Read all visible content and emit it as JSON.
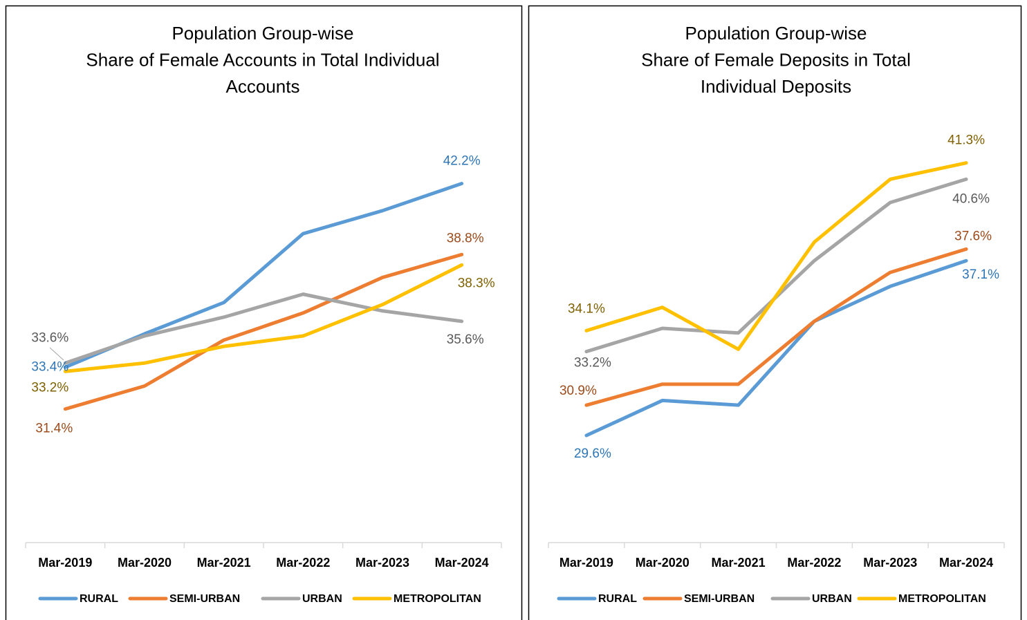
{
  "chart_data": [
    {
      "type": "line",
      "title": [
        "Population Group-wise",
        "Share of Female Accounts in Total Individual",
        "Accounts"
      ],
      "categories": [
        "Mar-2019",
        "Mar-2020",
        "Mar-2021",
        "Mar-2022",
        "Mar-2023",
        "Mar-2024"
      ],
      "ylim": [
        25,
        45
      ],
      "series": [
        {
          "name": "RURAL",
          "color": "#5b9bd5",
          "label_color": "#2e75b6",
          "values": [
            33.4,
            35.0,
            36.5,
            39.8,
            40.9,
            42.2
          ],
          "value_labels": [
            "33.4%",
            null,
            null,
            null,
            null,
            "42.2%"
          ]
        },
        {
          "name": "SEMI-URBAN",
          "color": "#ed7d31",
          "label_color": "#9c4a1a",
          "values": [
            31.4,
            32.5,
            34.7,
            36.0,
            37.7,
            38.8
          ],
          "value_labels": [
            "31.4%",
            null,
            null,
            null,
            null,
            "38.8%"
          ]
        },
        {
          "name": "URBAN",
          "color": "#a5a5a5",
          "label_color": "#595959",
          "values": [
            33.6,
            34.9,
            35.8,
            36.9,
            36.1,
            35.6
          ],
          "value_labels": [
            "33.6%",
            null,
            null,
            null,
            null,
            "35.6%"
          ]
        },
        {
          "name": "METROPOLITAN",
          "color": "#ffc000",
          "label_color": "#7f6000",
          "values": [
            33.2,
            33.6,
            34.4,
            34.9,
            36.4,
            38.3
          ],
          "value_labels": [
            "33.2%",
            null,
            null,
            null,
            null,
            "38.3%"
          ]
        }
      ],
      "legend": "bottom"
    },
    {
      "type": "line",
      "title": [
        "Population Group-wise",
        "Share of Female Deposits in Total",
        "Individual Deposits"
      ],
      "categories": [
        "Mar-2019",
        "Mar-2020",
        "Mar-2021",
        "Mar-2022",
        "Mar-2023",
        "Mar-2024"
      ],
      "ylim": [
        25,
        45
      ],
      "series": [
        {
          "name": "RURAL",
          "color": "#5b9bd5",
          "label_color": "#2e75b6",
          "values": [
            29.6,
            31.1,
            30.9,
            34.5,
            36.0,
            37.1
          ],
          "value_labels": [
            "29.6%",
            null,
            null,
            null,
            null,
            "37.1%"
          ]
        },
        {
          "name": "SEMI-URBAN",
          "color": "#ed7d31",
          "label_color": "#9c4a1a",
          "values": [
            30.9,
            31.8,
            31.8,
            34.5,
            36.6,
            37.6
          ],
          "value_labels": [
            "30.9%",
            null,
            null,
            null,
            null,
            "37.6%"
          ]
        },
        {
          "name": "URBAN",
          "color": "#a5a5a5",
          "label_color": "#595959",
          "values": [
            33.2,
            34.2,
            34.0,
            37.1,
            39.6,
            40.6
          ],
          "value_labels": [
            "33.2%",
            null,
            null,
            null,
            null,
            "40.6%"
          ]
        },
        {
          "name": "METROPOLITAN",
          "color": "#ffc000",
          "label_color": "#7f6000",
          "values": [
            34.1,
            35.1,
            33.3,
            37.9,
            40.6,
            41.3
          ],
          "value_labels": [
            "34.1%",
            null,
            null,
            null,
            null,
            "41.3%"
          ]
        }
      ],
      "legend": "bottom"
    }
  ]
}
